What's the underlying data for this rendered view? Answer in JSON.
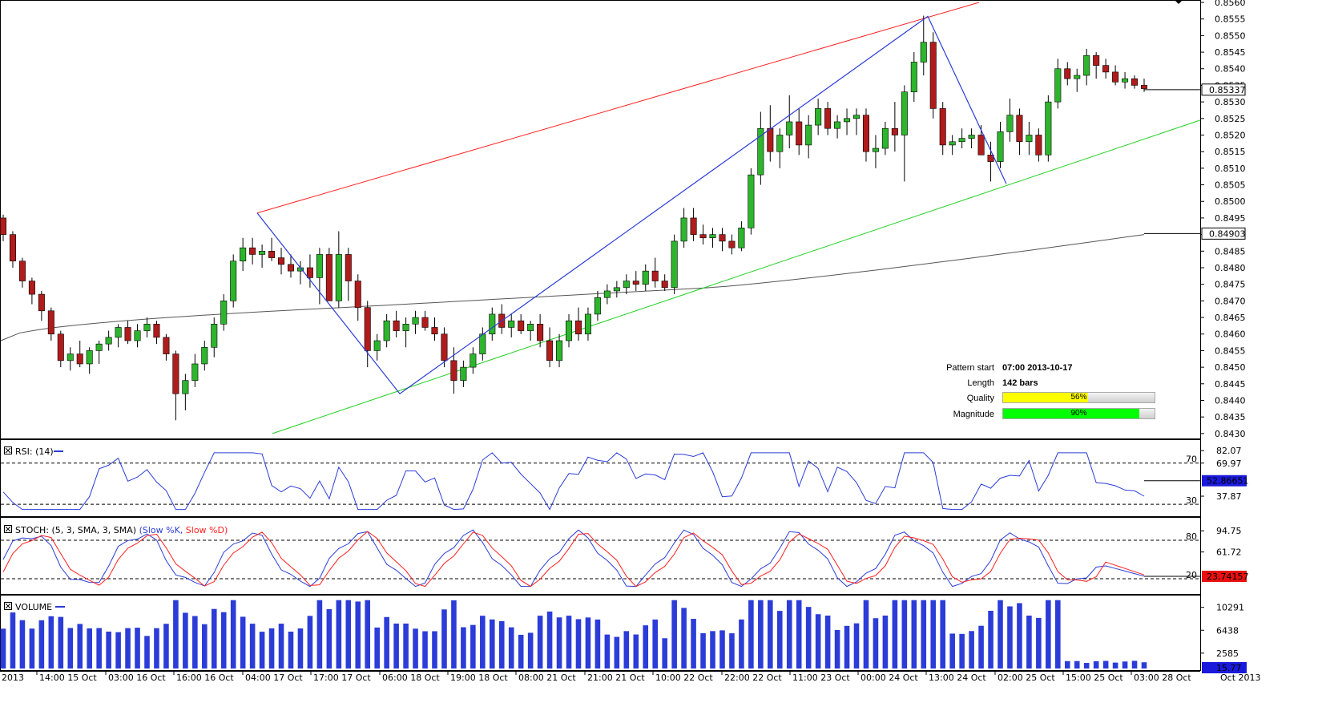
{
  "colors": {
    "bull": "#2db52d",
    "bear": "#b01c1c",
    "channel_upper": "#ff2020",
    "channel_lower": "#20d020",
    "zigzag": "#2b3cd8",
    "ma": "#555555",
    "rsi": "#2b3cd8",
    "stoch_k": "#2b3cd8",
    "stoch_d": "#ff2020",
    "volume": "#2b3cd8",
    "label_box_blue": "#1a1adc",
    "label_box_red": "#e81010"
  },
  "price_axis": {
    "ticks": [
      "0.8560",
      "0.8555",
      "0.8550",
      "0.8545",
      "0.8540",
      "0.8535",
      "0.8530",
      "0.8525",
      "0.8520",
      "0.8515",
      "0.8510",
      "0.8505",
      "0.8500",
      "0.8495",
      "0.8490",
      "0.8485",
      "0.8480",
      "0.8475",
      "0.8470",
      "0.8465",
      "0.8460",
      "0.8455",
      "0.8450",
      "0.8445",
      "0.8440",
      "0.8435",
      "0.8430"
    ],
    "current_label": "0.85337",
    "current_value": 0.85337,
    "ma_label": "0.84903",
    "ma_value": 0.84903,
    "range": [
      0.8429,
      0.856
    ]
  },
  "time_axis": {
    "labels": [
      "2013",
      "14:00 15 Oct",
      "03:00 16 Oct",
      "16:00 16 Oct",
      "04:00 17 Oct",
      "17:00 17 Oct",
      "06:00 18 Oct",
      "19:00 18 Oct",
      "08:00 21 Oct",
      "21:00 21 Oct",
      "10:00 22 Oct",
      "22:00 22 Oct",
      "11:00 23 Oct",
      "00:00 24 Oct",
      "13:00 24 Oct",
      "02:00 25 Oct",
      "15:00 25 Oct",
      "03:00 28 Oct",
      "Oct 2013"
    ]
  },
  "pattern_info": {
    "start_label": "Pattern start",
    "start_value": "07:00 2013-10-17",
    "length_label": "Length",
    "length_value": "142 bars",
    "quality_label": "Quality",
    "quality_value": "56%",
    "quality_pct": 56,
    "magnitude_label": "Magnitude",
    "magnitude_value": "90%",
    "magnitude_pct": 90
  },
  "rsi_panel": {
    "title": "RSI: (14)",
    "ticks": [
      "82.07",
      "69.97",
      "37.87"
    ],
    "level_70": "70",
    "level_30": "30",
    "current_label": "52.86651",
    "current_value": 52.87
  },
  "stoch_panel": {
    "title": "STOCH: (5, 3, SMA, 3, SMA)",
    "k_name": "(Slow %K,",
    "d_name": "Slow %D)",
    "ticks": [
      "94.75",
      "61.72"
    ],
    "level_80": "80",
    "level_20": "20",
    "current_label": "23.74157",
    "current_value": 23.74
  },
  "volume_panel": {
    "title": "VOLUME",
    "ticks": [
      "10291",
      "6438",
      "2585"
    ],
    "current_label": "15.77",
    "current_value": 15.77
  },
  "chart_data": {
    "type": "candlestick",
    "instrument_scale": "price",
    "ohlc_approx": [
      [
        0.8495,
        0.8496,
        0.8488,
        0.849
      ],
      [
        0.849,
        0.8491,
        0.848,
        0.8482
      ],
      [
        0.8482,
        0.8483,
        0.8474,
        0.8476
      ],
      [
        0.8476,
        0.8477,
        0.8469,
        0.8472
      ],
      [
        0.8472,
        0.8473,
        0.8464,
        0.8467
      ],
      [
        0.8467,
        0.8468,
        0.8458,
        0.846
      ],
      [
        0.846,
        0.8461,
        0.845,
        0.8452
      ],
      [
        0.8452,
        0.8456,
        0.8449,
        0.8454
      ],
      [
        0.8454,
        0.8458,
        0.845,
        0.8451
      ],
      [
        0.8451,
        0.8456,
        0.8448,
        0.8455
      ],
      [
        0.8455,
        0.8458,
        0.8451,
        0.8457
      ],
      [
        0.8457,
        0.8461,
        0.8455,
        0.8459
      ],
      [
        0.8459,
        0.8463,
        0.8456,
        0.8462
      ],
      [
        0.8462,
        0.8464,
        0.8457,
        0.8458
      ],
      [
        0.8458,
        0.8463,
        0.8456,
        0.8461
      ],
      [
        0.8461,
        0.8465,
        0.8459,
        0.8463
      ],
      [
        0.8463,
        0.8464,
        0.8457,
        0.8459
      ],
      [
        0.8459,
        0.846,
        0.8452,
        0.8454
      ],
      [
        0.8454,
        0.8455,
        0.8434,
        0.8442
      ],
      [
        0.8442,
        0.8448,
        0.8437,
        0.8446
      ],
      [
        0.8446,
        0.8454,
        0.8444,
        0.8451
      ],
      [
        0.8451,
        0.8458,
        0.8449,
        0.8456
      ],
      [
        0.8456,
        0.8465,
        0.8453,
        0.8463
      ],
      [
        0.8463,
        0.8472,
        0.8461,
        0.847
      ],
      [
        0.847,
        0.8484,
        0.8468,
        0.8482
      ],
      [
        0.8482,
        0.8489,
        0.8479,
        0.8486
      ],
      [
        0.8486,
        0.8489,
        0.8481,
        0.8484
      ],
      [
        0.8484,
        0.8487,
        0.848,
        0.8485
      ],
      [
        0.8485,
        0.8489,
        0.8482,
        0.8483
      ],
      [
        0.8483,
        0.8486,
        0.8478,
        0.8481
      ],
      [
        0.8481,
        0.8484,
        0.8477,
        0.8479
      ],
      [
        0.8479,
        0.8482,
        0.8475,
        0.848
      ],
      [
        0.848,
        0.8484,
        0.8474,
        0.8477
      ],
      [
        0.8477,
        0.8486,
        0.8469,
        0.8484
      ],
      [
        0.8484,
        0.8486,
        0.8474,
        0.847
      ],
      [
        0.847,
        0.8491,
        0.8468,
        0.8484
      ],
      [
        0.8484,
        0.8486,
        0.847,
        0.8476
      ],
      [
        0.8476,
        0.8478,
        0.8464,
        0.8468
      ],
      [
        0.8468,
        0.847,
        0.845,
        0.8455
      ],
      [
        0.8455,
        0.846,
        0.8452,
        0.8458
      ],
      [
        0.8458,
        0.8466,
        0.8456,
        0.8464
      ],
      [
        0.8464,
        0.8467,
        0.8459,
        0.8461
      ],
      [
        0.8461,
        0.8465,
        0.8456,
        0.8463
      ],
      [
        0.8463,
        0.8467,
        0.846,
        0.8465
      ],
      [
        0.8465,
        0.8467,
        0.8461,
        0.8462
      ],
      [
        0.8462,
        0.8465,
        0.8458,
        0.846
      ],
      [
        0.846,
        0.8462,
        0.845,
        0.8452
      ],
      [
        0.8452,
        0.8456,
        0.8442,
        0.8446
      ],
      [
        0.8446,
        0.8452,
        0.8444,
        0.845
      ],
      [
        0.845,
        0.8456,
        0.8448,
        0.8454
      ],
      [
        0.8454,
        0.8462,
        0.8452,
        0.846
      ],
      [
        0.846,
        0.8468,
        0.8458,
        0.8466
      ],
      [
        0.8466,
        0.8469,
        0.846,
        0.8462
      ],
      [
        0.8462,
        0.8466,
        0.8459,
        0.8464
      ],
      [
        0.8464,
        0.8466,
        0.846,
        0.8461
      ],
      [
        0.8461,
        0.8464,
        0.8458,
        0.8463
      ],
      [
        0.8463,
        0.8466,
        0.8456,
        0.8458
      ],
      [
        0.8458,
        0.8462,
        0.845,
        0.8452
      ],
      [
        0.8452,
        0.846,
        0.845,
        0.8458
      ],
      [
        0.8458,
        0.8466,
        0.8456,
        0.8464
      ],
      [
        0.8464,
        0.8468,
        0.8458,
        0.846
      ],
      [
        0.846,
        0.8468,
        0.8458,
        0.8466
      ],
      [
        0.8466,
        0.8473,
        0.8464,
        0.8471
      ],
      [
        0.8471,
        0.8475,
        0.8469,
        0.8473
      ],
      [
        0.8473,
        0.8476,
        0.8471,
        0.8474
      ],
      [
        0.8474,
        0.8478,
        0.8472,
        0.8476
      ],
      [
        0.8476,
        0.8479,
        0.8473,
        0.8475
      ],
      [
        0.8475,
        0.8481,
        0.8473,
        0.8479
      ],
      [
        0.8479,
        0.8483,
        0.8474,
        0.8476
      ],
      [
        0.8476,
        0.8478,
        0.8473,
        0.8474
      ],
      [
        0.8474,
        0.849,
        0.8472,
        0.8488
      ],
      [
        0.8488,
        0.8498,
        0.8486,
        0.8495
      ],
      [
        0.8495,
        0.8498,
        0.8488,
        0.849
      ],
      [
        0.849,
        0.8493,
        0.8487,
        0.8489
      ],
      [
        0.8489,
        0.8492,
        0.8486,
        0.849
      ],
      [
        0.849,
        0.8492,
        0.8485,
        0.8488
      ],
      [
        0.8488,
        0.849,
        0.8484,
        0.8486
      ],
      [
        0.8486,
        0.8494,
        0.8485,
        0.8492
      ],
      [
        0.8492,
        0.851,
        0.849,
        0.8508
      ],
      [
        0.8508,
        0.8527,
        0.8505,
        0.8522
      ],
      [
        0.8522,
        0.8529,
        0.8512,
        0.8515
      ],
      [
        0.8515,
        0.8522,
        0.851,
        0.852
      ],
      [
        0.852,
        0.8532,
        0.8516,
        0.8524
      ],
      [
        0.8524,
        0.8528,
        0.8514,
        0.8517
      ],
      [
        0.8517,
        0.8526,
        0.8513,
        0.8523
      ],
      [
        0.8523,
        0.8531,
        0.852,
        0.8528
      ],
      [
        0.8528,
        0.853,
        0.852,
        0.8522
      ],
      [
        0.8522,
        0.8526,
        0.8519,
        0.8524
      ],
      [
        0.8524,
        0.8528,
        0.852,
        0.8525
      ],
      [
        0.8525,
        0.8528,
        0.852,
        0.8526
      ],
      [
        0.8526,
        0.8528,
        0.8512,
        0.8515
      ],
      [
        0.8515,
        0.852,
        0.851,
        0.8516
      ],
      [
        0.8516,
        0.8524,
        0.8514,
        0.8522
      ],
      [
        0.8522,
        0.853,
        0.8515,
        0.852
      ],
      [
        0.852,
        0.8535,
        0.8506,
        0.8533
      ],
      [
        0.8533,
        0.8545,
        0.853,
        0.8542
      ],
      [
        0.8542,
        0.8556,
        0.8538,
        0.8548
      ],
      [
        0.8548,
        0.8551,
        0.8525,
        0.8528
      ],
      [
        0.8528,
        0.853,
        0.8514,
        0.8517
      ],
      [
        0.8517,
        0.852,
        0.8514,
        0.8518
      ],
      [
        0.8518,
        0.8522,
        0.8516,
        0.8519
      ],
      [
        0.8519,
        0.8522,
        0.8516,
        0.852
      ],
      [
        0.852,
        0.8523,
        0.8515,
        0.8514
      ],
      [
        0.8514,
        0.8518,
        0.8506,
        0.8512
      ],
      [
        0.8512,
        0.8524,
        0.851,
        0.8521
      ],
      [
        0.8521,
        0.8531,
        0.8518,
        0.8526
      ],
      [
        0.8526,
        0.8528,
        0.8514,
        0.8518
      ],
      [
        0.8518,
        0.8524,
        0.8514,
        0.852
      ],
      [
        0.852,
        0.8522,
        0.8512,
        0.8514
      ],
      [
        0.8514,
        0.8532,
        0.8512,
        0.853
      ],
      [
        0.853,
        0.8543,
        0.8528,
        0.854
      ],
      [
        0.854,
        0.8542,
        0.8535,
        0.8537
      ],
      [
        0.8537,
        0.854,
        0.8533,
        0.8538
      ],
      [
        0.8538,
        0.8546,
        0.8535,
        0.8544
      ],
      [
        0.8544,
        0.8545,
        0.8537,
        0.8541
      ],
      [
        0.8541,
        0.8543,
        0.8537,
        0.8539
      ],
      [
        0.8539,
        0.8541,
        0.8535,
        0.8536
      ],
      [
        0.8536,
        0.8539,
        0.8534,
        0.8537
      ],
      [
        0.8537,
        0.8538,
        0.8534,
        0.8535
      ],
      [
        0.8535,
        0.8537,
        0.8533,
        0.8534
      ]
    ]
  }
}
